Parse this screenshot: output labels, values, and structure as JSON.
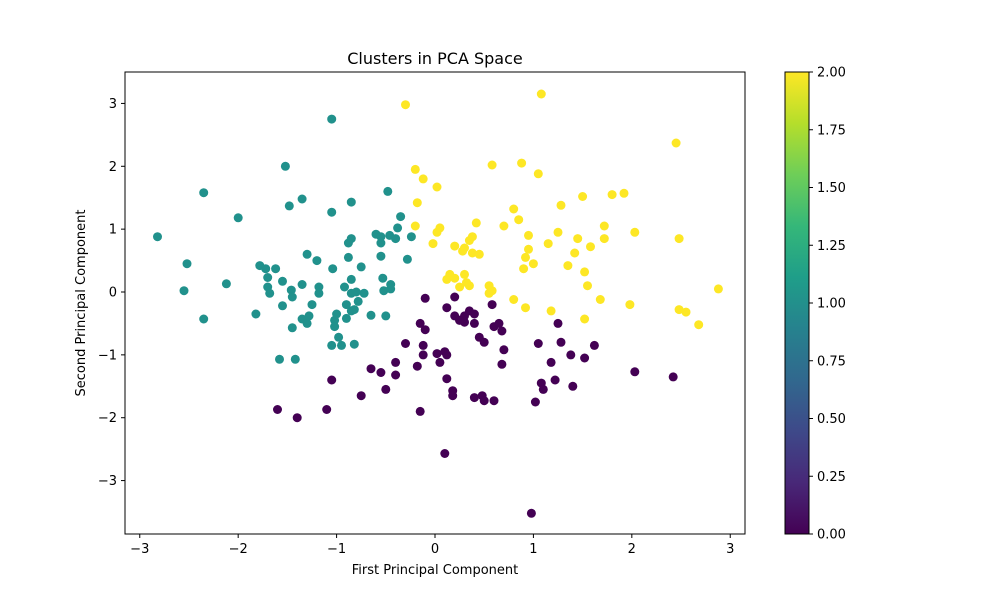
{
  "chart_data": {
    "type": "scatter",
    "title": "Clusters in PCA Space",
    "xlabel": "First Principal Component",
    "ylabel": "Second Principal Component",
    "xlim": [
      -3.15,
      3.15
    ],
    "ylim": [
      -3.85,
      3.5
    ],
    "xticks": [
      -3,
      -2,
      -1,
      0,
      1,
      2,
      3
    ],
    "xtick_labels": [
      "−3",
      "−2",
      "−1",
      "0",
      "1",
      "2",
      "3"
    ],
    "yticks": [
      -3,
      -2,
      -1,
      0,
      1,
      2,
      3
    ],
    "ytick_labels": [
      "−3",
      "−2",
      "−1",
      "0",
      "1",
      "2",
      "3"
    ],
    "grid": false,
    "colorbar": {
      "colormap": "viridis",
      "range": [
        0.0,
        2.0
      ],
      "ticks": [
        0.0,
        0.25,
        0.5,
        0.75,
        1.0,
        1.25,
        1.5,
        1.75,
        2.0
      ],
      "tick_labels": [
        "0.00",
        "0.25",
        "0.50",
        "0.75",
        "1.00",
        "1.25",
        "1.50",
        "1.75",
        "2.00"
      ],
      "stops": [
        "#440154",
        "#482878",
        "#3e4989",
        "#31688e",
        "#26828e",
        "#1f9e89",
        "#35b779",
        "#6ece58",
        "#b5de2b",
        "#fde725"
      ]
    },
    "series": [
      {
        "cluster": 0,
        "color": "#440154",
        "points": [
          [
            -0.1,
            -0.1
          ],
          [
            -0.15,
            -0.5
          ],
          [
            -0.1,
            -0.6
          ],
          [
            -0.12,
            -0.85
          ],
          [
            -0.12,
            -1.0
          ],
          [
            -0.18,
            -1.18
          ],
          [
            -0.3,
            -0.82
          ],
          [
            -0.4,
            -1.12
          ],
          [
            -0.4,
            -1.32
          ],
          [
            -0.55,
            -1.28
          ],
          [
            -0.65,
            -1.22
          ],
          [
            -0.5,
            -1.55
          ],
          [
            -0.75,
            -1.65
          ],
          [
            -1.05,
            -1.4
          ],
          [
            -1.1,
            -1.87
          ],
          [
            -1.4,
            -2.0
          ],
          [
            -1.6,
            -1.87
          ],
          [
            -0.15,
            -1.9
          ],
          [
            0.05,
            -1.12
          ],
          [
            0.1,
            -0.95
          ],
          [
            0.12,
            -1.0
          ],
          [
            0.12,
            -1.38
          ],
          [
            0.18,
            -1.57
          ],
          [
            0.18,
            -1.65
          ],
          [
            0.1,
            -2.57
          ],
          [
            0.12,
            -0.25
          ],
          [
            0.2,
            -0.08
          ],
          [
            0.2,
            -0.38
          ],
          [
            0.25,
            -0.45
          ],
          [
            0.3,
            -0.48
          ],
          [
            0.3,
            -0.38
          ],
          [
            0.35,
            -0.3
          ],
          [
            0.4,
            -0.35
          ],
          [
            0.4,
            -0.5
          ],
          [
            0.45,
            -0.72
          ],
          [
            0.5,
            -0.8
          ],
          [
            0.58,
            -0.2
          ],
          [
            0.6,
            -0.55
          ],
          [
            0.65,
            -0.5
          ],
          [
            0.68,
            -0.62
          ],
          [
            0.7,
            -0.92
          ],
          [
            0.68,
            -1.15
          ],
          [
            0.4,
            -1.68
          ],
          [
            0.48,
            -1.65
          ],
          [
            0.5,
            -1.73
          ],
          [
            0.6,
            -1.73
          ],
          [
            0.98,
            -3.52
          ],
          [
            1.02,
            -1.75
          ],
          [
            1.05,
            -0.82
          ],
          [
            1.08,
            -1.45
          ],
          [
            1.1,
            -1.55
          ],
          [
            1.18,
            -1.12
          ],
          [
            1.22,
            -1.4
          ],
          [
            1.25,
            -0.5
          ],
          [
            1.28,
            -0.8
          ],
          [
            1.38,
            -1.0
          ],
          [
            1.4,
            -1.5
          ],
          [
            1.52,
            -1.05
          ],
          [
            1.62,
            -0.85
          ],
          [
            2.03,
            -1.27
          ],
          [
            2.42,
            -1.35
          ],
          [
            0.02,
            -0.98
          ],
          [
            0.25,
            -0.45
          ]
        ]
      },
      {
        "cluster": 1,
        "color": "#21918c",
        "points": [
          [
            -2.82,
            0.88
          ],
          [
            -2.55,
            0.02
          ],
          [
            -2.52,
            0.45
          ],
          [
            -2.35,
            -0.43
          ],
          [
            -2.35,
            1.58
          ],
          [
            -2.12,
            0.13
          ],
          [
            -2.0,
            1.18
          ],
          [
            -1.82,
            -0.35
          ],
          [
            -1.78,
            0.42
          ],
          [
            -1.72,
            0.37
          ],
          [
            -1.7,
            0.23
          ],
          [
            -1.7,
            0.08
          ],
          [
            -1.68,
            -0.02
          ],
          [
            -1.62,
            0.37
          ],
          [
            -1.55,
            -0.22
          ],
          [
            -1.58,
            -1.07
          ],
          [
            -1.52,
            2.0
          ],
          [
            -1.48,
            1.37
          ],
          [
            -1.46,
            0.03
          ],
          [
            -1.45,
            -0.08
          ],
          [
            -1.45,
            -0.57
          ],
          [
            -1.42,
            -1.07
          ],
          [
            -1.35,
            1.48
          ],
          [
            -1.35,
            0.12
          ],
          [
            -1.35,
            -0.43
          ],
          [
            -1.3,
            -0.5
          ],
          [
            -1.3,
            0.6
          ],
          [
            -1.28,
            -0.38
          ],
          [
            -1.25,
            -0.2
          ],
          [
            -1.2,
            0.5
          ],
          [
            -1.18,
            0.08
          ],
          [
            -1.18,
            -0.02
          ],
          [
            -1.05,
            2.75
          ],
          [
            -1.05,
            1.27
          ],
          [
            -1.04,
            0.37
          ],
          [
            -1.02,
            -0.45
          ],
          [
            -1.02,
            -0.55
          ],
          [
            -1.0,
            -0.35
          ],
          [
            -0.98,
            -0.72
          ],
          [
            -1.05,
            -0.85
          ],
          [
            -0.95,
            -0.85
          ],
          [
            -0.92,
            0.08
          ],
          [
            -0.9,
            -0.42
          ],
          [
            -0.9,
            -0.2
          ],
          [
            -0.88,
            0.55
          ],
          [
            -0.88,
            0.78
          ],
          [
            -0.85,
            0.85
          ],
          [
            -0.85,
            1.43
          ],
          [
            -0.85,
            0.2
          ],
          [
            -0.85,
            -0.02
          ],
          [
            -0.85,
            -0.3
          ],
          [
            -0.82,
            -0.28
          ],
          [
            -0.8,
            0.0
          ],
          [
            -0.78,
            -0.15
          ],
          [
            -0.75,
            0.4
          ],
          [
            -0.72,
            -0.02
          ],
          [
            -0.65,
            -0.37
          ],
          [
            -0.6,
            0.92
          ],
          [
            -0.55,
            0.78
          ],
          [
            -0.55,
            0.88
          ],
          [
            -0.55,
            0.57
          ],
          [
            -0.53,
            0.22
          ],
          [
            -0.52,
            0.02
          ],
          [
            -0.5,
            -0.38
          ],
          [
            -0.48,
            1.6
          ],
          [
            -0.46,
            0.9
          ],
          [
            -0.45,
            0.12
          ],
          [
            -0.45,
            0.05
          ],
          [
            -0.4,
            0.85
          ],
          [
            -0.38,
            1.02
          ],
          [
            -0.35,
            1.2
          ],
          [
            -0.28,
            0.52
          ],
          [
            -0.24,
            0.88
          ],
          [
            -0.82,
            -0.83
          ],
          [
            -1.55,
            0.17
          ]
        ]
      },
      {
        "cluster": 2,
        "color": "#fde725",
        "points": [
          [
            -0.3,
            2.98
          ],
          [
            -0.2,
            1.95
          ],
          [
            -0.2,
            1.05
          ],
          [
            -0.18,
            1.42
          ],
          [
            -0.12,
            1.8
          ],
          [
            -0.02,
            0.77
          ],
          [
            0.02,
            1.67
          ],
          [
            0.02,
            0.95
          ],
          [
            0.05,
            1.02
          ],
          [
            0.12,
            0.2
          ],
          [
            0.15,
            0.28
          ],
          [
            0.2,
            0.22
          ],
          [
            0.2,
            0.73
          ],
          [
            0.25,
            0.08
          ],
          [
            0.28,
            0.65
          ],
          [
            0.3,
            0.7
          ],
          [
            0.3,
            0.28
          ],
          [
            0.32,
            0.15
          ],
          [
            0.35,
            0.1
          ],
          [
            0.35,
            0.82
          ],
          [
            0.38,
            0.88
          ],
          [
            0.38,
            0.62
          ],
          [
            0.42,
            1.1
          ],
          [
            0.45,
            0.6
          ],
          [
            0.55,
            0.1
          ],
          [
            0.55,
            -0.02
          ],
          [
            0.58,
            2.02
          ],
          [
            0.7,
            1.05
          ],
          [
            0.8,
            -0.12
          ],
          [
            0.8,
            1.32
          ],
          [
            0.85,
            1.15
          ],
          [
            0.88,
            2.05
          ],
          [
            0.9,
            0.37
          ],
          [
            0.92,
            0.55
          ],
          [
            0.92,
            -0.25
          ],
          [
            0.95,
            0.9
          ],
          [
            0.95,
            0.68
          ],
          [
            1.0,
            0.45
          ],
          [
            1.05,
            1.88
          ],
          [
            1.08,
            3.15
          ],
          [
            1.15,
            0.77
          ],
          [
            1.18,
            -0.3
          ],
          [
            1.25,
            0.95
          ],
          [
            1.28,
            1.38
          ],
          [
            1.35,
            0.42
          ],
          [
            1.42,
            0.62
          ],
          [
            1.45,
            0.85
          ],
          [
            1.5,
            1.52
          ],
          [
            1.52,
            0.32
          ],
          [
            1.52,
            -0.43
          ],
          [
            1.55,
            0.1
          ],
          [
            1.58,
            0.72
          ],
          [
            1.68,
            -0.12
          ],
          [
            1.72,
            1.05
          ],
          [
            1.72,
            0.85
          ],
          [
            1.8,
            1.55
          ],
          [
            1.92,
            1.57
          ],
          [
            1.98,
            -0.2
          ],
          [
            2.03,
            0.95
          ],
          [
            2.45,
            2.37
          ],
          [
            2.48,
            0.85
          ],
          [
            2.48,
            -0.28
          ],
          [
            2.55,
            -0.32
          ],
          [
            2.68,
            -0.52
          ],
          [
            2.88,
            0.05
          ],
          [
            0.58,
            0.02
          ]
        ]
      }
    ]
  }
}
